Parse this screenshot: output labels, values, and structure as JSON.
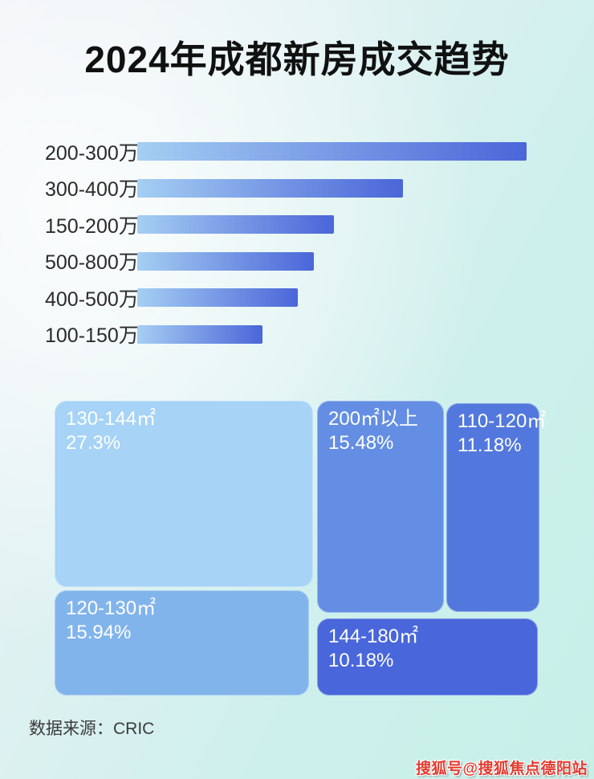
{
  "page": {
    "title": "2024年成都新房成交趋势",
    "source_note": "数据来源：CRIC",
    "watermark": "搜狐号@搜狐焦点德阳站"
  },
  "colors": {
    "background_top_left": "#f3f5f7",
    "background_bottom_right": "#c7efe8",
    "bar_gradient_start": "#a5cff3",
    "bar_gradient_end": "#4a66d9",
    "title_text": "#111111",
    "bar_label_text": "#2b2b2b",
    "treemap_text": "#ffffff",
    "source_text": "#3b3b3b",
    "watermark_red": "#e23b30"
  },
  "chart_data": [
    {
      "type": "bar",
      "orientation": "horizontal",
      "title": "2024年成都新房成交趋势",
      "categories": [
        "200-300万",
        "300-400万",
        "150-200万",
        "500-800万",
        "400-500万",
        "100-150万"
      ],
      "values": [
        100,
        68.2,
        50.5,
        45.4,
        41.2,
        32.2
      ],
      "value_note": "bar lengths as % of longest bar; absolute values are not labeled in the image",
      "xlabel": "",
      "ylabel": "",
      "legend": "none",
      "grid": "off"
    },
    {
      "type": "treemap",
      "title": "",
      "items": [
        {
          "label": "130-144㎡",
          "pct_label": "27.3%",
          "value": 27.3,
          "color": "#a6d3f6"
        },
        {
          "label": "120-130㎡",
          "pct_label": "15.94%",
          "value": 15.94,
          "color": "#82b4ec"
        },
        {
          "label": "200㎡以上",
          "pct_label": "15.48%",
          "value": 15.48,
          "color": "#648ee3"
        },
        {
          "label": "110-120㎡",
          "pct_label": "11.18%",
          "value": 11.18,
          "color": "#5278dd"
        },
        {
          "label": "144-180㎡",
          "pct_label": "10.18%",
          "value": 10.18,
          "color": "#4967db"
        }
      ]
    }
  ]
}
